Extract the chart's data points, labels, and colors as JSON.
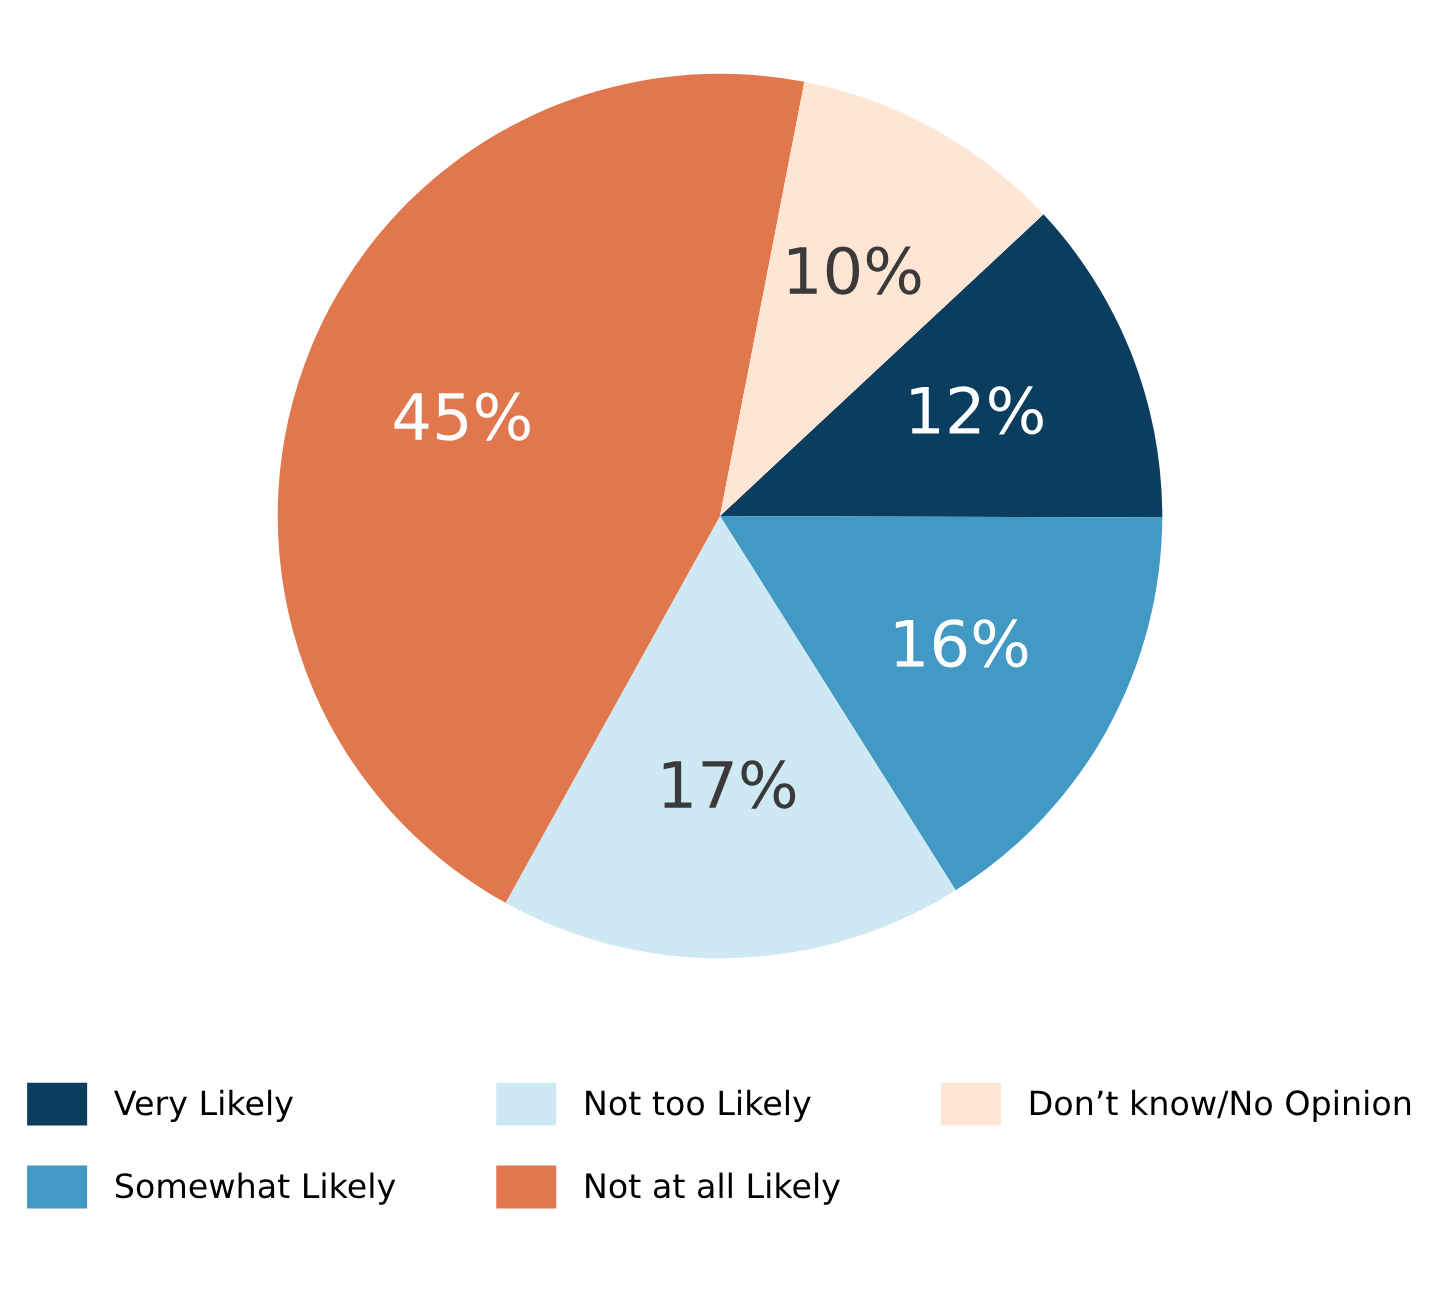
{
  "chart_data": {
    "type": "pie",
    "categories": [
      "Very Likely",
      "Somewhat Likely",
      "Not too Likely",
      "Not at all Likely",
      "Don’t know/No Opinion"
    ],
    "values": [
      12,
      16,
      17,
      45,
      10
    ],
    "colors": [
      "#0b3e5e",
      "#429ac4",
      "#cfe9f4",
      "#e0774d",
      "#fee5d4"
    ],
    "value_labels": [
      "12%",
      "16%",
      "17%",
      "45%",
      "10%"
    ],
    "legend": "bottom"
  }
}
